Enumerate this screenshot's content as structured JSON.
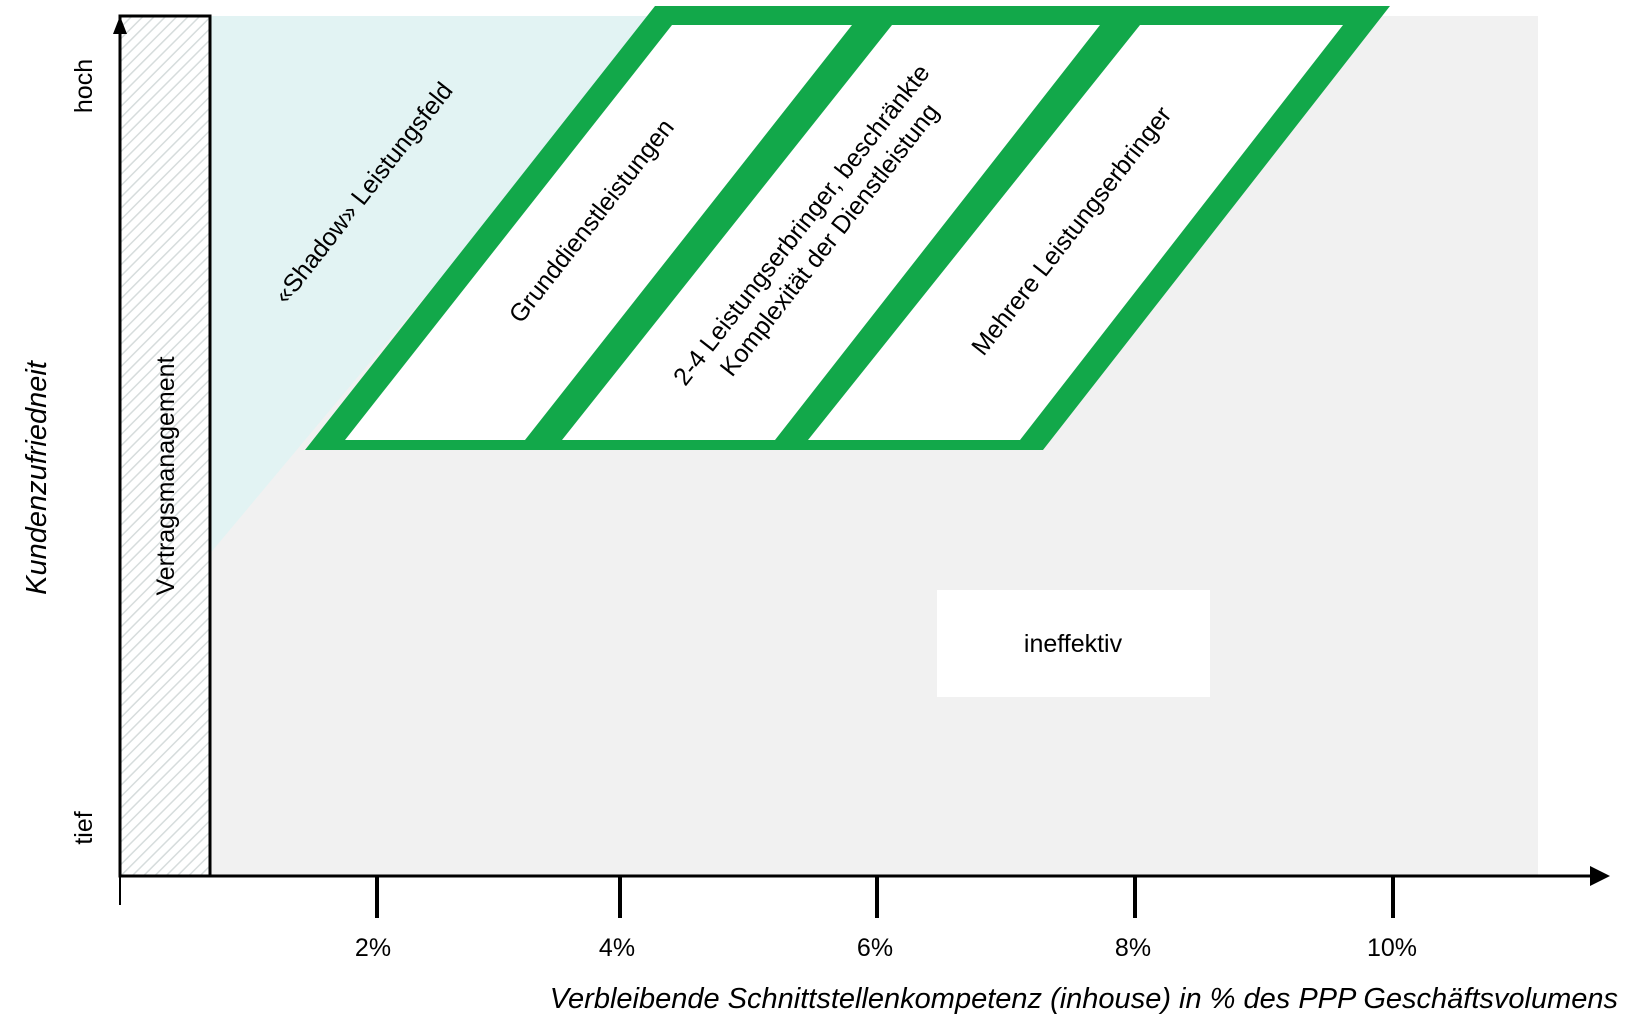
{
  "y_axis": {
    "title": "Kundenzufriedneit",
    "high_label": "hoch",
    "low_label": "tief"
  },
  "x_axis": {
    "title": "Verbleibende Schnittstellenkompetenz (inhouse) in % des PPP Geschäftsvolumens",
    "ticks": [
      "2%",
      "4%",
      "6%",
      "8%",
      "10%"
    ]
  },
  "regions": {
    "contract": "Vertragsmanagement",
    "shadow": "«Shadow» Leistungsfeld",
    "basic": "Grunddienstleistungen",
    "limited_line1": "2-4 Leistungserbringer, beschränkte",
    "limited_line2": "Komplexität der Dienstleistung",
    "multiple": "Mehrere Leistungserbringer",
    "ineffective": "ineffektiv"
  },
  "colors": {
    "green": "#12a84a",
    "shadow_fill": "#e2f3f3",
    "plot_bg": "#f1f1f1",
    "hatch": "#d6dcdc"
  }
}
